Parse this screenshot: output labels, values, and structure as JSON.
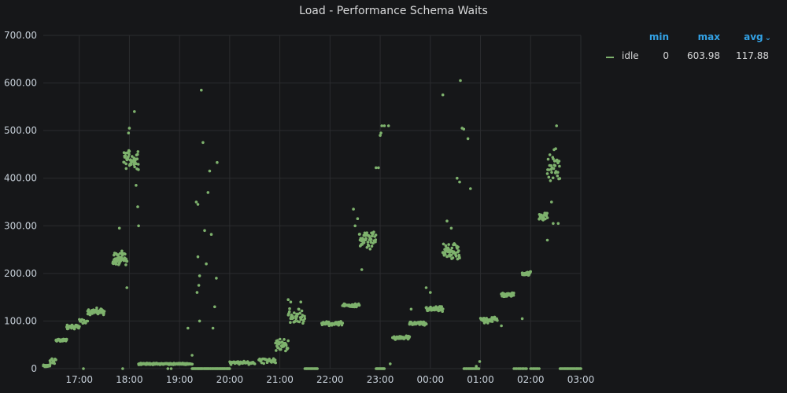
{
  "panel": {
    "title": "Load - Performance Schema Waits"
  },
  "legend": {
    "headers": {
      "min": "min",
      "max": "max",
      "avg": "avg"
    },
    "sort_icon": "chevron-down-icon",
    "series": [
      {
        "name": "idle",
        "min": "0",
        "max": "603.98",
        "avg": "117.88",
        "color": "#7eb26d"
      }
    ]
  },
  "chart_data": {
    "type": "scatter",
    "title": "Load - Performance Schema Waits",
    "xlabel": "",
    "ylabel": "",
    "xlim": [
      "16:17",
      "03:00"
    ],
    "ylim": [
      0,
      700
    ],
    "y_ticks": [
      "0",
      "100.00",
      "200.00",
      "300.00",
      "400.00",
      "500.00",
      "600.00",
      "700.00"
    ],
    "x_ticks": [
      "17:00",
      "18:00",
      "19:00",
      "20:00",
      "21:00",
      "22:00",
      "23:00",
      "00:00",
      "01:00",
      "02:00",
      "03:00"
    ],
    "grid": true,
    "legend_position": "right",
    "series": [
      {
        "name": "idle",
        "color": "#7eb26d",
        "clusters": [
          {
            "start": "16:17",
            "end": "16:25",
            "center": 6,
            "spread": 3,
            "n": 40
          },
          {
            "start": "16:25",
            "end": "16:32",
            "center": 15,
            "spread": 10,
            "n": 10
          },
          {
            "start": "16:32",
            "end": "16:45",
            "center": 60,
            "spread": 3,
            "n": 35
          },
          {
            "start": "16:45",
            "end": "17:00",
            "center": 88,
            "spread": 6,
            "n": 30
          },
          {
            "start": "17:00",
            "end": "17:10",
            "center": 100,
            "spread": 6,
            "n": 10
          },
          {
            "start": "17:10",
            "end": "17:30",
            "center": 120,
            "spread": 8,
            "n": 40
          },
          {
            "start": "17:40",
            "end": "17:57",
            "center": 230,
            "spread": 18,
            "n": 50
          },
          {
            "start": "17:53",
            "end": "18:11",
            "center": 440,
            "spread": 25,
            "n": 45
          },
          {
            "start": "18:11",
            "end": "19:15",
            "center": 10,
            "spread": 2,
            "n": 140
          },
          {
            "start": "19:15",
            "end": "20:00",
            "center": 0,
            "spread": 0,
            "n": 60
          },
          {
            "start": "20:00",
            "end": "20:30",
            "center": 12,
            "spread": 4,
            "n": 40
          },
          {
            "start": "20:35",
            "end": "20:55",
            "center": 18,
            "spread": 8,
            "n": 25
          },
          {
            "start": "20:55",
            "end": "21:10",
            "center": 50,
            "spread": 15,
            "n": 35
          },
          {
            "start": "21:10",
            "end": "21:30",
            "center": 110,
            "spread": 20,
            "n": 35
          },
          {
            "start": "21:30",
            "end": "21:45",
            "center": 0,
            "spread": 0,
            "n": 15
          },
          {
            "start": "21:50",
            "end": "22:15",
            "center": 95,
            "spread": 5,
            "n": 40
          },
          {
            "start": "22:15",
            "end": "22:35",
            "center": 133,
            "spread": 4,
            "n": 35
          },
          {
            "start": "22:35",
            "end": "22:55",
            "center": 270,
            "spread": 20,
            "n": 50
          },
          {
            "start": "22:55",
            "end": "23:05",
            "center": 0,
            "spread": 0,
            "n": 12
          },
          {
            "start": "23:15",
            "end": "23:35",
            "center": 65,
            "spread": 4,
            "n": 40
          },
          {
            "start": "23:35",
            "end": "23:55",
            "center": 95,
            "spread": 5,
            "n": 40
          },
          {
            "start": "23:55",
            "end": "00:15",
            "center": 125,
            "spread": 6,
            "n": 40
          },
          {
            "start": "00:15",
            "end": "00:35",
            "center": 245,
            "spread": 20,
            "n": 50
          },
          {
            "start": "00:40",
            "end": "00:58",
            "center": 0,
            "spread": 0,
            "n": 15
          },
          {
            "start": "01:00",
            "end": "01:20",
            "center": 103,
            "spread": 8,
            "n": 40
          },
          {
            "start": "01:25",
            "end": "01:40",
            "center": 155,
            "spread": 5,
            "n": 35
          },
          {
            "start": "01:40",
            "end": "01:55",
            "center": 0,
            "spread": 0,
            "n": 10
          },
          {
            "start": "01:50",
            "end": "02:00",
            "center": 200,
            "spread": 5,
            "n": 25
          },
          {
            "start": "02:00",
            "end": "02:10",
            "center": 0,
            "spread": 0,
            "n": 8
          },
          {
            "start": "02:10",
            "end": "02:20",
            "center": 320,
            "spread": 10,
            "n": 25
          },
          {
            "start": "02:20",
            "end": "02:35",
            "center": 420,
            "spread": 35,
            "n": 30
          },
          {
            "start": "02:35",
            "end": "03:00",
            "center": 0,
            "spread": 0,
            "n": 25
          }
        ],
        "points": [
          [
            "17:05",
            0
          ],
          [
            "17:48",
            295
          ],
          [
            "17:57",
            170
          ],
          [
            "17:52",
            0
          ],
          [
            "17:59",
            495
          ],
          [
            "18:00",
            505
          ],
          [
            "18:06",
            540
          ],
          [
            "18:08",
            385
          ],
          [
            "18:10",
            340
          ],
          [
            "18:11",
            300
          ],
          [
            "18:46",
            0
          ],
          [
            "18:50",
            0
          ],
          [
            "19:10",
            85
          ],
          [
            "19:15",
            28
          ],
          [
            "19:20",
            350
          ],
          [
            "19:22",
            345
          ],
          [
            "19:22",
            235
          ],
          [
            "19:24",
            195
          ],
          [
            "19:26",
            585
          ],
          [
            "19:28",
            475
          ],
          [
            "19:30",
            290
          ],
          [
            "19:32",
            220
          ],
          [
            "19:34",
            370
          ],
          [
            "19:36",
            415
          ],
          [
            "19:38",
            282
          ],
          [
            "19:40",
            85
          ],
          [
            "19:42",
            130
          ],
          [
            "19:44",
            190
          ],
          [
            "19:45",
            433
          ],
          [
            "19:24",
            100
          ],
          [
            "19:21",
            160
          ],
          [
            "19:23",
            175
          ],
          [
            "21:10",
            145
          ],
          [
            "21:13",
            140
          ],
          [
            "22:28",
            335
          ],
          [
            "22:30",
            300
          ],
          [
            "22:33",
            315
          ],
          [
            "22:38",
            208
          ],
          [
            "22:55",
            422
          ],
          [
            "22:58",
            422
          ],
          [
            "23:00",
            490
          ],
          [
            "23:01",
            495
          ],
          [
            "23:02",
            510
          ],
          [
            "23:05",
            510
          ],
          [
            "23:10",
            510
          ],
          [
            "23:12",
            10
          ],
          [
            "23:37",
            125
          ],
          [
            "23:55",
            170
          ],
          [
            "00:15",
            575
          ],
          [
            "00:20",
            310
          ],
          [
            "00:25",
            295
          ],
          [
            "00:32",
            400
          ],
          [
            "00:35",
            392
          ],
          [
            "00:36",
            605
          ],
          [
            "00:38",
            505
          ],
          [
            "00:40",
            503
          ],
          [
            "00:45",
            483
          ],
          [
            "00:48",
            378
          ],
          [
            "00:55",
            5
          ],
          [
            "00:59",
            15
          ],
          [
            "01:25",
            90
          ],
          [
            "01:50",
            105
          ],
          [
            "02:20",
            270
          ],
          [
            "02:25",
            350
          ],
          [
            "02:27",
            305
          ],
          [
            "02:28",
            460
          ],
          [
            "02:30",
            462
          ],
          [
            "02:31",
            510
          ],
          [
            "02:32",
            405
          ],
          [
            "02:33",
            305
          ],
          [
            "00:00",
            160
          ],
          [
            "21:25",
            140
          ]
        ]
      }
    ]
  }
}
